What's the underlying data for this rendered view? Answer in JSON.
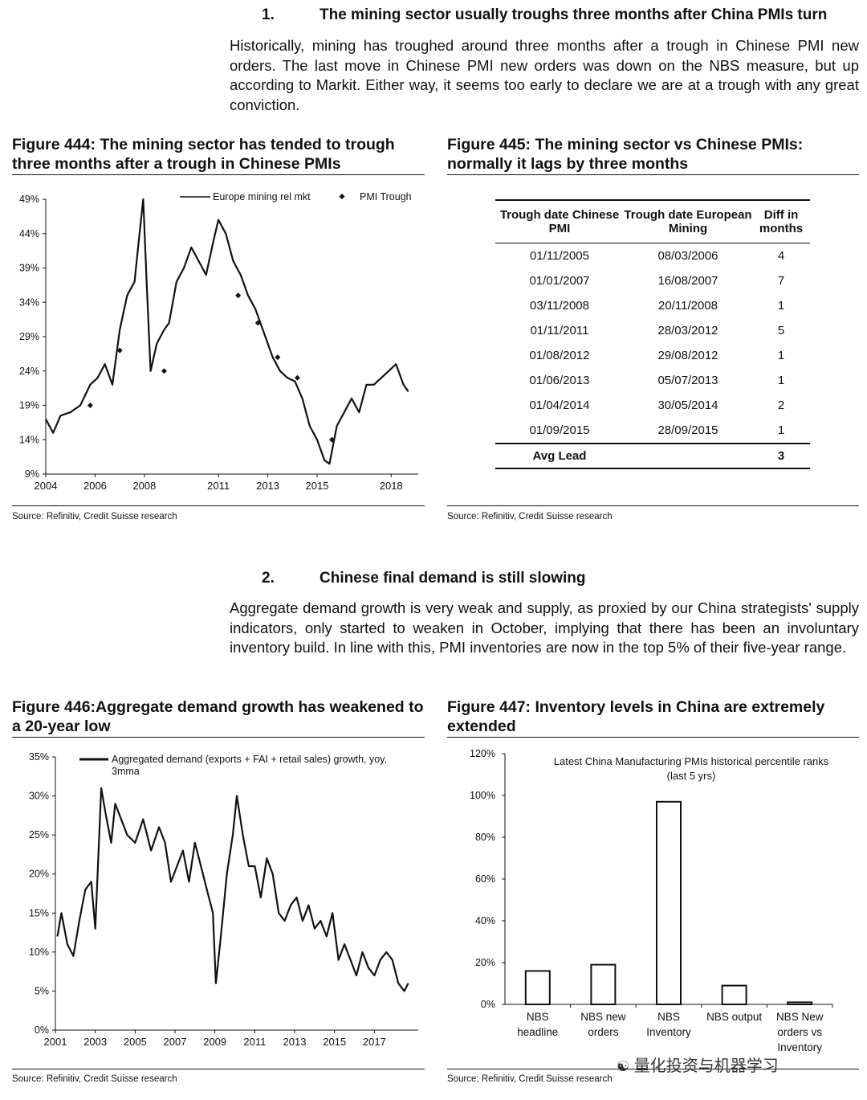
{
  "section1": {
    "number": "1.",
    "title": "The mining sector usually troughs three months after China PMIs turn",
    "paragraph": "Historically, mining has troughed around three months after a trough in Chinese PMI new orders. The last move in Chinese PMI new orders was down on the NBS measure, but up according to Markit. Either way, it seems too early to declare we are at a trough with any great conviction."
  },
  "section2": {
    "number": "2.",
    "title": "Chinese final demand is still slowing",
    "paragraph": "Aggregate demand growth is very weak and supply, as proxied by our China strategists' supply indicators, only started to weaken in October, implying that there has been an involuntary inventory build. In line with this, PMI inventories are now in the top 5% of their five-year range."
  },
  "fig444": {
    "title": "Figure 444: The mining sector has tended to trough three months after a trough in Chinese PMIs",
    "source": "Source: Refinitiv, Credit Suisse research",
    "chart_data": {
      "type": "line",
      "series": [
        {
          "name": "Europe mining rel mkt",
          "style": "line",
          "x": [
            2004.0,
            2004.3,
            2004.6,
            2005.0,
            2005.4,
            2005.8,
            2006.1,
            2006.4,
            2006.7,
            2007.0,
            2007.3,
            2007.6,
            2007.8,
            2007.95,
            2008.1,
            2008.25,
            2008.5,
            2008.8,
            2009.0,
            2009.3,
            2009.6,
            2009.9,
            2010.2,
            2010.5,
            2010.8,
            2011.0,
            2011.3,
            2011.6,
            2011.9,
            2012.2,
            2012.5,
            2012.9,
            2013.2,
            2013.5,
            2013.8,
            2014.1,
            2014.4,
            2014.7,
            2015.0,
            2015.3,
            2015.5,
            2015.8,
            2016.1,
            2016.4,
            2016.7,
            2017.0,
            2017.3,
            2017.6,
            2017.9,
            2018.2,
            2018.5,
            2018.7
          ],
          "y": [
            17,
            15,
            17.5,
            18,
            19,
            22,
            23,
            25,
            22,
            30,
            35,
            37,
            44,
            49,
            36,
            24,
            28,
            30,
            31,
            37,
            39,
            42,
            40,
            38,
            43,
            46,
            44,
            40,
            38,
            35,
            33,
            29,
            26,
            24,
            23,
            22.5,
            20,
            16,
            14,
            11,
            10.5,
            16,
            18,
            20,
            18,
            22,
            22,
            23,
            24,
            25,
            22,
            21
          ]
        }
      ],
      "points": [
        {
          "name": "PMI Trough",
          "x": [
            2005.8,
            2007.0,
            2008.8,
            2011.8,
            2012.6,
            2013.4,
            2014.2,
            2015.6
          ],
          "y": [
            19,
            27,
            24,
            35,
            31,
            26,
            23,
            14
          ]
        }
      ],
      "xticks": [
        "2004",
        "2006",
        "2008",
        "2011",
        "2013",
        "2015",
        "2018"
      ],
      "xtick_values": [
        2004,
        2006,
        2008,
        2011,
        2013,
        2015,
        2018
      ],
      "yticks": [
        "9%",
        "14%",
        "19%",
        "24%",
        "29%",
        "34%",
        "39%",
        "44%",
        "49%"
      ],
      "ylim": [
        9,
        49
      ],
      "xlim": [
        2004,
        2019.1
      ],
      "legend": [
        "Europe mining rel mkt",
        "PMI Trough"
      ],
      "legend_position": "top"
    }
  },
  "fig445": {
    "title": "Figure 445: The mining sector vs Chinese PMIs: normally it lags by three months",
    "source": "Source: Refinitiv, Credit Suisse research",
    "chart_data": {
      "type": "table",
      "headers": [
        "Trough date Chinese PMI",
        "Trough date European Mining",
        "Diff in months"
      ],
      "rows": [
        [
          "01/11/2005",
          "08/03/2006",
          "4"
        ],
        [
          "01/01/2007",
          "16/08/2007",
          "7"
        ],
        [
          "03/11/2008",
          "20/11/2008",
          "1"
        ],
        [
          "01/11/2011",
          "28/03/2012",
          "5"
        ],
        [
          "01/08/2012",
          "29/08/2012",
          "1"
        ],
        [
          "01/06/2013",
          "05/07/2013",
          "1"
        ],
        [
          "01/04/2014",
          "30/05/2014",
          "2"
        ],
        [
          "01/09/2015",
          "28/09/2015",
          "1"
        ]
      ],
      "footer": [
        "Avg Lead",
        "",
        "3"
      ]
    }
  },
  "fig446": {
    "title": "Figure 446:Aggregate demand growth has weakened to a 20-year low",
    "source": "Source: Refinitiv, Credit Suisse research",
    "chart_data": {
      "type": "line",
      "series": [
        {
          "name": "Aggregated demand (exports + FAI + retail sales) growth, yoy, 3mma",
          "x": [
            2001.1,
            2001.3,
            2001.6,
            2001.9,
            2002.2,
            2002.5,
            2002.8,
            2003.0,
            2003.3,
            2003.5,
            2003.8,
            2004.0,
            2004.3,
            2004.6,
            2005.0,
            2005.4,
            2005.8,
            2006.2,
            2006.5,
            2006.8,
            2007.1,
            2007.4,
            2007.7,
            2008.0,
            2008.3,
            2008.6,
            2008.9,
            2009.05,
            2009.3,
            2009.6,
            2009.9,
            2010.1,
            2010.4,
            2010.7,
            2011.0,
            2011.3,
            2011.6,
            2011.9,
            2012.2,
            2012.5,
            2012.8,
            2013.1,
            2013.4,
            2013.7,
            2014.0,
            2014.3,
            2014.6,
            2014.9,
            2015.2,
            2015.5,
            2015.8,
            2016.1,
            2016.4,
            2016.7,
            2017.0,
            2017.3,
            2017.6,
            2017.9,
            2018.2,
            2018.5,
            2018.7
          ],
          "y": [
            12,
            15,
            11,
            9.5,
            14,
            18,
            19,
            13,
            31,
            28,
            24,
            29,
            27,
            25,
            24,
            27,
            23,
            26,
            24,
            19,
            21,
            23,
            19,
            24,
            21,
            18,
            15,
            6,
            12,
            20,
            25,
            30,
            25,
            21,
            21,
            17,
            22,
            20,
            15,
            14,
            16,
            17,
            14,
            16,
            13,
            14,
            12,
            15,
            9,
            11,
            9,
            7,
            10,
            8,
            7,
            9,
            10,
            9,
            6,
            5,
            6
          ]
        }
      ],
      "xticks": [
        "2001",
        "2003",
        "2005",
        "2007",
        "2009",
        "2011",
        "2013",
        "2015",
        "2017"
      ],
      "xtick_values": [
        2001,
        2003,
        2005,
        2007,
        2009,
        2011,
        2013,
        2015,
        2017
      ],
      "yticks": [
        "0%",
        "5%",
        "10%",
        "15%",
        "20%",
        "25%",
        "30%",
        "35%"
      ],
      "ylim": [
        0,
        35
      ],
      "xlim": [
        2001,
        2019.2
      ],
      "legend": [
        "Aggregated demand (exports + FAI + retail sales) growth, yoy,",
        "3mma"
      ],
      "legend_position": "top"
    }
  },
  "fig447": {
    "title": "Figure 447: Inventory levels in China are extremely extended",
    "source": "Source: Refinitiv, Credit Suisse research",
    "chart_data": {
      "type": "bar",
      "inner_title": [
        "Latest China Manufacturing PMIs historical percentile ranks",
        "(last 5 yrs)"
      ],
      "categories": [
        [
          "NBS",
          "headline"
        ],
        [
          "NBS new",
          "orders"
        ],
        [
          "NBS",
          "Inventory"
        ],
        [
          "NBS output"
        ],
        [
          "NBS New",
          "orders vs",
          "Inventory"
        ]
      ],
      "values": [
        16,
        19,
        97,
        9,
        1
      ],
      "yticks": [
        "0%",
        "20%",
        "40%",
        "60%",
        "80%",
        "100%",
        "120%"
      ],
      "ylim": [
        0,
        120
      ]
    }
  },
  "watermark": "量化投资与机器学习"
}
